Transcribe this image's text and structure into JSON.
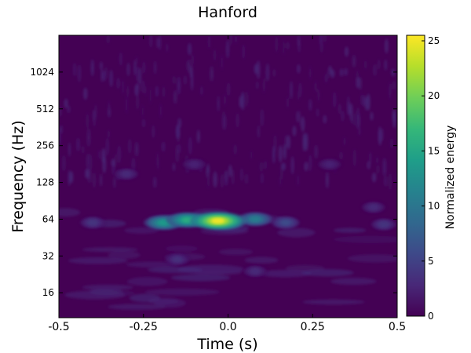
{
  "chart_data": {
    "type": "heatmap",
    "title": "Hanford",
    "xlabel": "Time (s)",
    "ylabel": "Frequency (Hz)",
    "colorbar_label": "Normalized energy",
    "colormap": "viridis",
    "xlim": [
      -0.5,
      0.5
    ],
    "x_ticks": [
      -0.5,
      -0.25,
      0.0,
      0.25,
      0.5
    ],
    "x_tick_labels": [
      "-0.5",
      "-0.25",
      "0.0",
      "0.25",
      "0.5"
    ],
    "y_scale": "log2",
    "ylim": [
      10,
      2048
    ],
    "y_ticks": [
      16,
      32,
      64,
      128,
      256,
      512,
      1024
    ],
    "y_tick_labels": [
      "16",
      "32",
      "64",
      "128",
      "256",
      "512",
      "1024"
    ],
    "clim": [
      0,
      25.5
    ],
    "colorbar_ticks": [
      0,
      5,
      10,
      15,
      20,
      25
    ],
    "colorbar_tick_labels": [
      "0",
      "5",
      "10",
      "15",
      "20",
      "25"
    ],
    "grid": false,
    "hotspots": [
      {
        "t": -0.03,
        "f": 62,
        "energy": 25.5
      },
      {
        "t": -0.12,
        "f": 63,
        "energy": 16
      },
      {
        "t": -0.19,
        "f": 60,
        "energy": 14
      },
      {
        "t": 0.08,
        "f": 64,
        "energy": 11
      },
      {
        "t": 0.17,
        "f": 60,
        "energy": 6
      },
      {
        "t": 0.0,
        "f": 60,
        "energy": 10
      },
      {
        "t": -0.4,
        "f": 60,
        "energy": 4
      },
      {
        "t": 0.46,
        "f": 58,
        "energy": 4
      },
      {
        "t": -0.15,
        "f": 30,
        "energy": 3.5
      },
      {
        "t": 0.08,
        "f": 24,
        "energy": 3
      },
      {
        "t": -0.3,
        "f": 150,
        "energy": 3
      },
      {
        "t": -0.1,
        "f": 180,
        "energy": 2.5
      },
      {
        "t": 0.3,
        "f": 180,
        "energy": 2.5
      },
      {
        "t": 0.43,
        "f": 80,
        "energy": 3
      }
    ]
  }
}
